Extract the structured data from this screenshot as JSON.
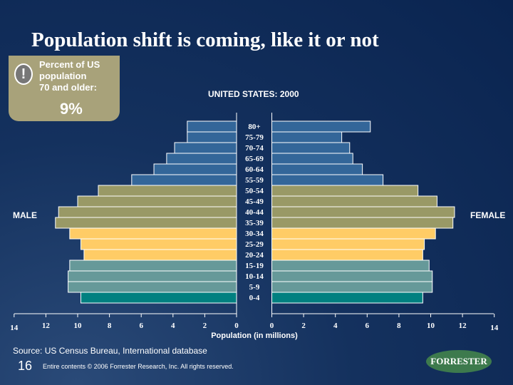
{
  "title": "Population shift is coming, like it or not",
  "callout": {
    "icon": "exclamation-icon",
    "line1": "Percent of US",
    "line2": "population",
    "line3": "70 and older:",
    "value": "9%"
  },
  "footer": {
    "source": "Source: US Census Bureau, International database",
    "page": "16",
    "copyright": "Entire contents © 2006  Forrester Research, Inc. All rights reserved.",
    "logo": "FORRESTER"
  },
  "chart_data": {
    "type": "bar",
    "title": "UNITED STATES: 2000",
    "xlabel": "Population (in millions)",
    "left_label": "MALE",
    "right_label": "FEMALE",
    "xlim": [
      0,
      14
    ],
    "x_ticks": [
      0,
      2,
      4,
      6,
      8,
      10,
      12,
      14
    ],
    "categories": [
      "80+",
      "75-79",
      "70-74",
      "65-69",
      "60-64",
      "55-59",
      "50-54",
      "45-49",
      "40-44",
      "35-39",
      "30-34",
      "25-29",
      "20-24",
      "15-19",
      "10-14",
      "5-9",
      "0-4"
    ],
    "series": [
      {
        "name": "MALE",
        "values": [
          3.1,
          3.1,
          3.9,
          4.4,
          5.2,
          6.6,
          8.7,
          10.0,
          11.2,
          11.4,
          10.5,
          9.8,
          9.6,
          10.5,
          10.6,
          10.6,
          9.8
        ]
      },
      {
        "name": "FEMALE",
        "values": [
          6.2,
          4.4,
          4.9,
          5.1,
          5.7,
          7.0,
          9.2,
          10.4,
          11.5,
          11.4,
          10.3,
          9.6,
          9.5,
          9.9,
          10.1,
          10.1,
          9.5
        ]
      }
    ],
    "bar_colors": [
      "#336699",
      "#336699",
      "#336699",
      "#336699",
      "#336699",
      "#336699",
      "#999966",
      "#999966",
      "#999966",
      "#999966",
      "#ffcc66",
      "#ffcc66",
      "#ffcc66",
      "#669999",
      "#669999",
      "#669999",
      "#008080"
    ]
  }
}
